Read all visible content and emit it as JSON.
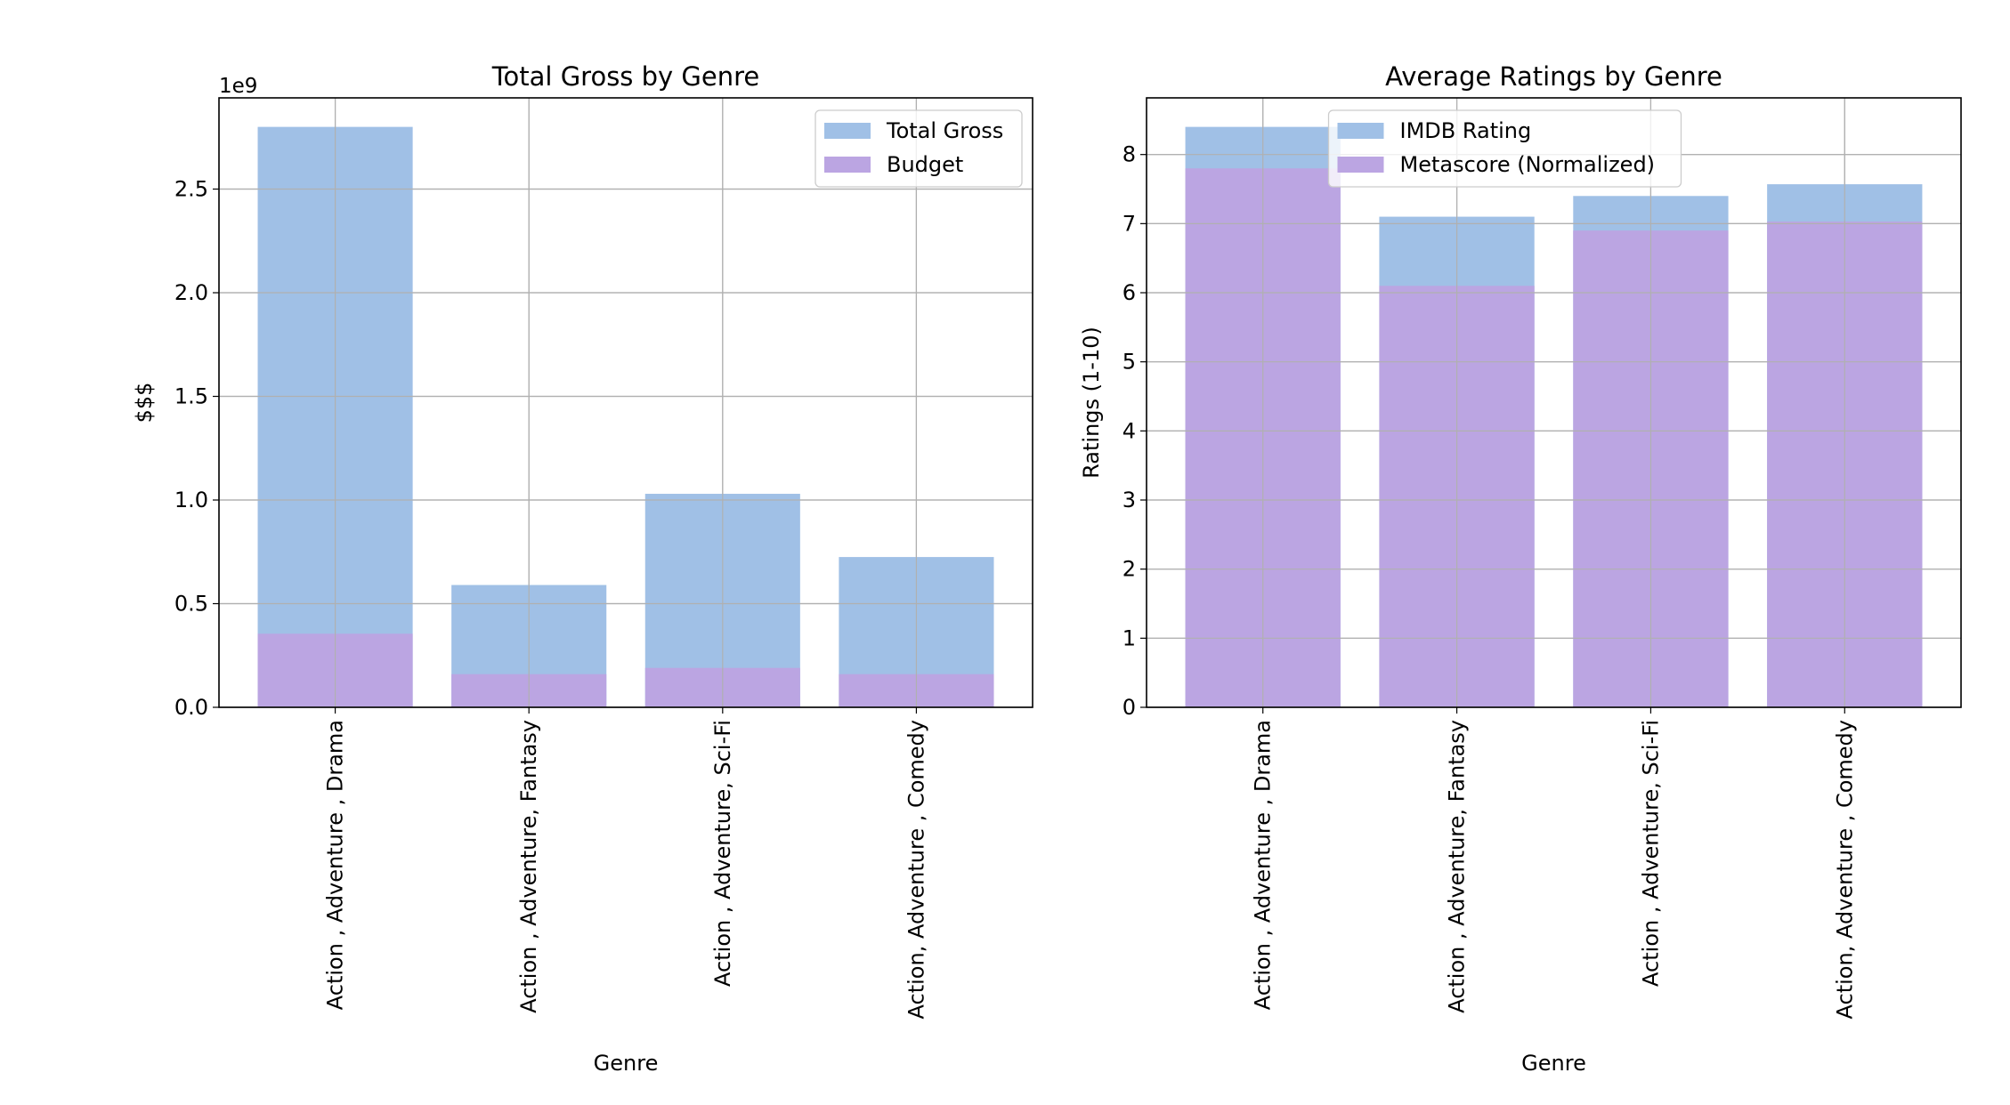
{
  "chart_data": [
    {
      "type": "bar",
      "title": "Total Gross by Genre",
      "xlabel": "Genre",
      "ylabel": "$$$",
      "y_offset_label": "1e9",
      "categories": [
        "Action , Adventure , Drama",
        "Action , Adventure, Fantasy",
        "Action , Adventure, Sci-Fi",
        "Action, Adventure , Comedy"
      ],
      "ylim": [
        0,
        2.94
      ],
      "yticks": [
        0.0,
        0.5,
        1.0,
        1.5,
        2.0,
        2.5
      ],
      "ytick_labels": [
        "0.0",
        "0.5",
        "1.0",
        "1.5",
        "2.0",
        "2.5"
      ],
      "grid": true,
      "legend_position": "top-right",
      "series": [
        {
          "name": "Total Gross",
          "color": "#a0c0e6",
          "values": [
            2.8,
            0.59,
            1.03,
            0.725
          ]
        },
        {
          "name": "Budget",
          "color": "#bba5e2",
          "values": [
            0.355,
            0.16,
            0.19,
            0.16
          ]
        }
      ]
    },
    {
      "type": "bar",
      "title": "Average Ratings by Genre",
      "xlabel": "Genre",
      "ylabel": "Ratings (1-10)",
      "categories": [
        "Action , Adventure , Drama",
        "Action , Adventure, Fantasy",
        "Action , Adventure, Sci-Fi",
        "Action, Adventure , Comedy"
      ],
      "ylim": [
        0,
        8.82
      ],
      "yticks": [
        0,
        1,
        2,
        3,
        4,
        5,
        6,
        7,
        8
      ],
      "ytick_labels": [
        "0",
        "1",
        "2",
        "3",
        "4",
        "5",
        "6",
        "7",
        "8"
      ],
      "grid": true,
      "legend_position": "top-center",
      "series": [
        {
          "name": "IMDB Rating",
          "color": "#a0c0e6",
          "values": [
            8.4,
            7.1,
            7.4,
            7.57
          ]
        },
        {
          "name": "Metascore (Normalized)",
          "color": "#bba5e2",
          "values": [
            7.8,
            6.1,
            6.9,
            7.03
          ]
        }
      ]
    }
  ]
}
